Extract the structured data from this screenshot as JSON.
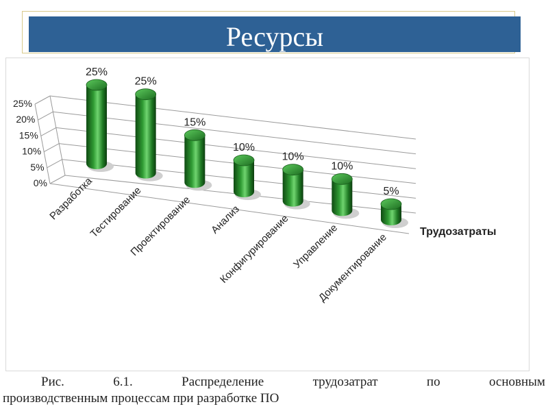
{
  "slide": {
    "title": "Ресурсы",
    "caption_words": [
      "Рис.",
      "6.1.",
      "Распределение",
      "трудозатрат",
      "по",
      "основным"
    ],
    "caption_line2": "производственным процессам при разработке ПО"
  },
  "colors": {
    "title_bar": "#2e6195",
    "cylinder_dark": "#0f4a12",
    "cylinder_mid": "#2f9a33",
    "cylinder_light": "#6fd46f"
  },
  "chart_data": {
    "type": "bar",
    "style": "3d-cylinder",
    "categories": [
      "Разработка",
      "Тестирование",
      "Проектирование",
      "Анализ",
      "Конфигурирование",
      "Управление",
      "Документирование"
    ],
    "series": [
      {
        "name": "Трудозатраты",
        "values": [
          25,
          25,
          15,
          10,
          10,
          10,
          5
        ]
      }
    ],
    "data_labels": [
      "25%",
      "25%",
      "15%",
      "10%",
      "10%",
      "10%",
      "5%"
    ],
    "y_ticks": [
      "0%",
      "5%",
      "10%",
      "15%",
      "20%",
      "25%"
    ],
    "ylim": [
      0,
      25
    ],
    "grid": true,
    "legend": "right"
  }
}
